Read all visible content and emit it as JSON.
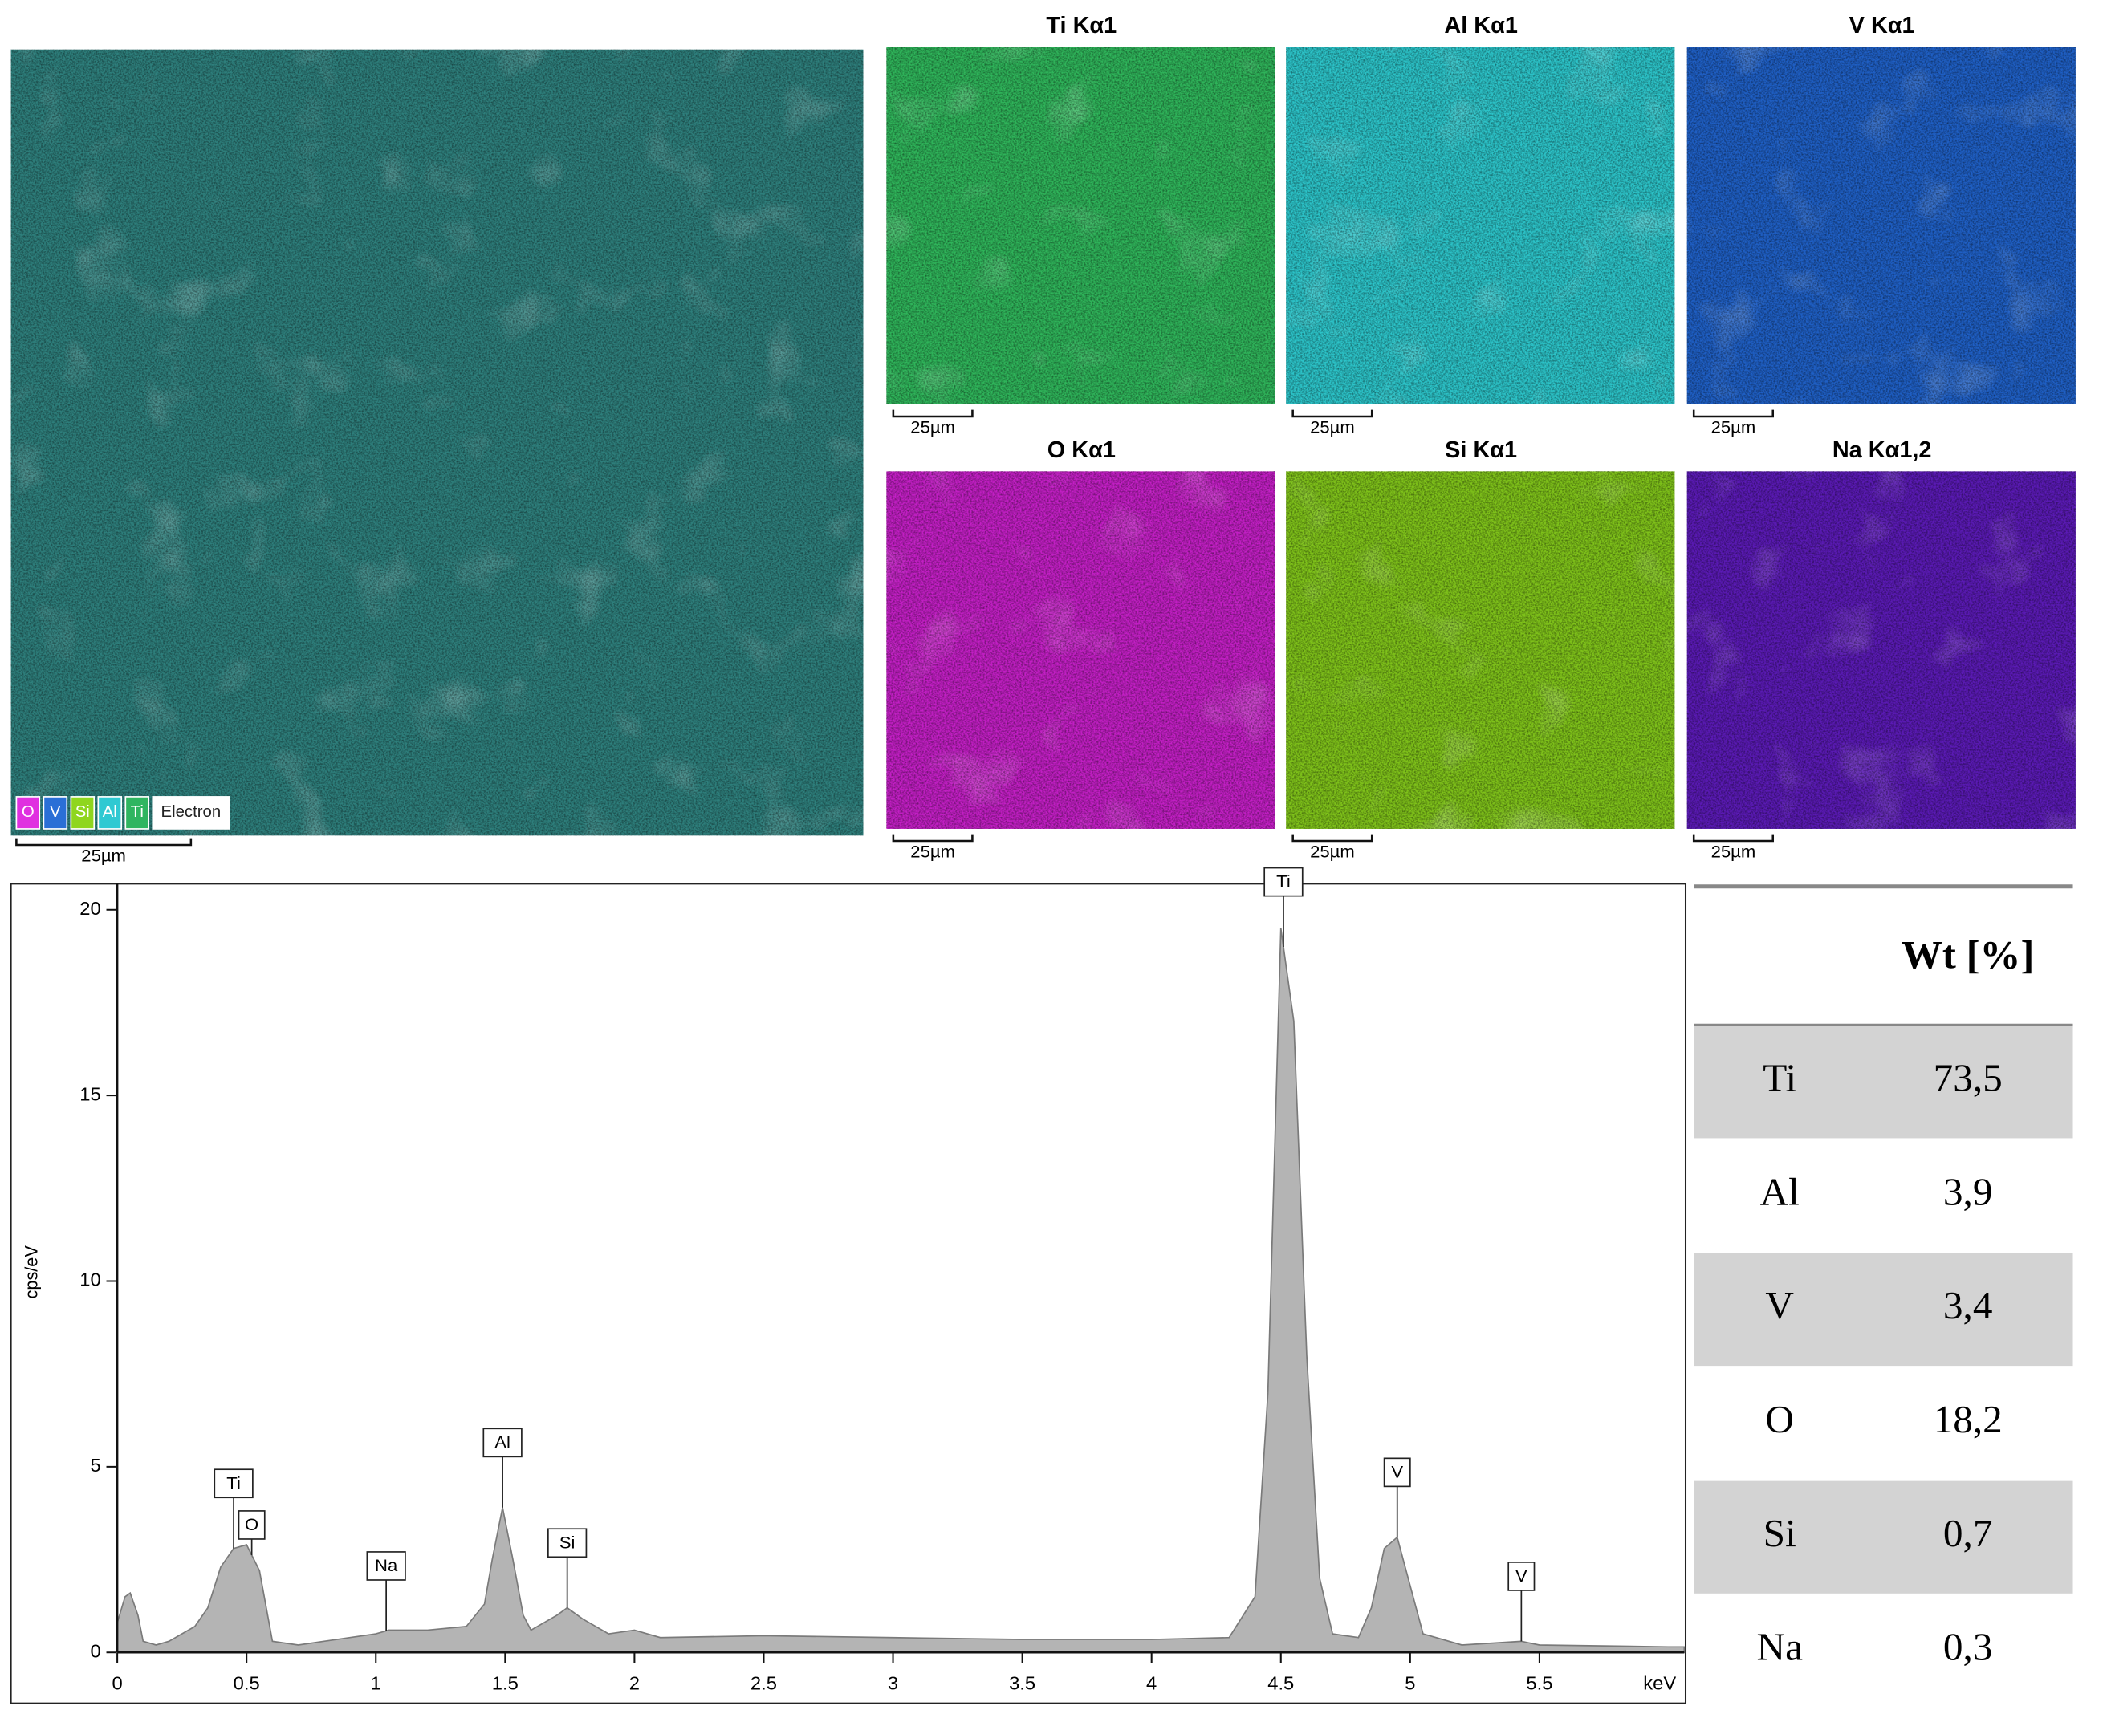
{
  "composite": {
    "legend": [
      {
        "label": "O",
        "color": "#e030e0"
      },
      {
        "label": "V",
        "color": "#2a6fd6"
      },
      {
        "label": "Si",
        "color": "#8fd61e"
      },
      {
        "label": "Al",
        "color": "#2fc9d2"
      },
      {
        "label": "Ti",
        "color": "#2fb560"
      },
      {
        "label": "Electron",
        "color": "#ffffff"
      }
    ],
    "color": "#2e7f7c",
    "scale": "25µm"
  },
  "maps": [
    {
      "title": "Ti Kα1",
      "color": "#2fb45a",
      "scale": "25µm"
    },
    {
      "title": "Al Kα1",
      "color": "#2cc3c8",
      "scale": "25µm"
    },
    {
      "title": "V Kα1",
      "color": "#1f5fc4",
      "scale": "25µm"
    },
    {
      "title": "O Kα1",
      "color": "#c21fc4",
      "scale": "25µm"
    },
    {
      "title": "Si Kα1",
      "color": "#7fc21a",
      "scale": "25µm"
    },
    {
      "title": "Na Kα1,2",
      "color": "#5a1ab4",
      "scale": "25µm"
    }
  ],
  "chart_data": {
    "type": "area",
    "y_label": "cps/eV",
    "x_label": "keV",
    "color": "#b4b4b4",
    "x": [
      0,
      0.03,
      0.05,
      0.08,
      0.1,
      0.15,
      0.2,
      0.3,
      0.35,
      0.4,
      0.45,
      0.5,
      0.55,
      0.6,
      0.7,
      0.8,
      1.0,
      1.05,
      1.2,
      1.35,
      1.42,
      1.45,
      1.49,
      1.53,
      1.57,
      1.6,
      1.7,
      1.74,
      1.8,
      1.9,
      2.0,
      2.1,
      2.5,
      3.0,
      3.5,
      4.0,
      4.3,
      4.4,
      4.45,
      4.5,
      4.55,
      4.6,
      4.65,
      4.7,
      4.8,
      4.85,
      4.9,
      4.95,
      5.0,
      5.05,
      5.2,
      5.43,
      5.5,
      6.0,
      6.06
    ],
    "values": [
      0.8,
      1.5,
      1.6,
      1.0,
      0.3,
      0.2,
      0.3,
      0.7,
      1.2,
      2.3,
      2.8,
      2.9,
      2.2,
      0.3,
      0.2,
      0.3,
      0.5,
      0.6,
      0.6,
      0.7,
      1.3,
      2.5,
      3.9,
      2.5,
      1.0,
      0.6,
      1.0,
      1.2,
      0.9,
      0.5,
      0.6,
      0.4,
      0.45,
      0.4,
      0.35,
      0.35,
      0.4,
      1.5,
      7,
      19.5,
      17,
      8,
      2,
      0.5,
      0.4,
      1.2,
      2.8,
      3.1,
      1.8,
      0.5,
      0.2,
      0.3,
      0.2,
      0.15,
      0.15
    ],
    "xlim": [
      0,
      6.06
    ],
    "ylim": [
      0,
      20.7
    ],
    "xticks": [
      0,
      0.5,
      1,
      1.5,
      2,
      2.5,
      3,
      3.5,
      4,
      4.5,
      5,
      5.5
    ],
    "yticks": [
      0,
      5,
      10,
      15,
      20
    ],
    "peak_labels": [
      {
        "label": "Ti",
        "x": 0.45
      },
      {
        "label": "O",
        "x": 0.52
      },
      {
        "label": "Na",
        "x": 1.04
      },
      {
        "label": "Al",
        "x": 1.49
      },
      {
        "label": "Si",
        "x": 1.74
      },
      {
        "label": "Ti",
        "x": 4.51
      },
      {
        "label": "V",
        "x": 4.95
      },
      {
        "label": "V",
        "x": 5.43
      }
    ]
  },
  "table": {
    "header": "Wt [%]",
    "rows": [
      [
        "Ti",
        "73,5"
      ],
      [
        "Al",
        "3,9"
      ],
      [
        "V",
        "3,4"
      ],
      [
        "O",
        "18,2"
      ],
      [
        "Si",
        "0,7"
      ],
      [
        "Na",
        "0,3"
      ]
    ]
  }
}
